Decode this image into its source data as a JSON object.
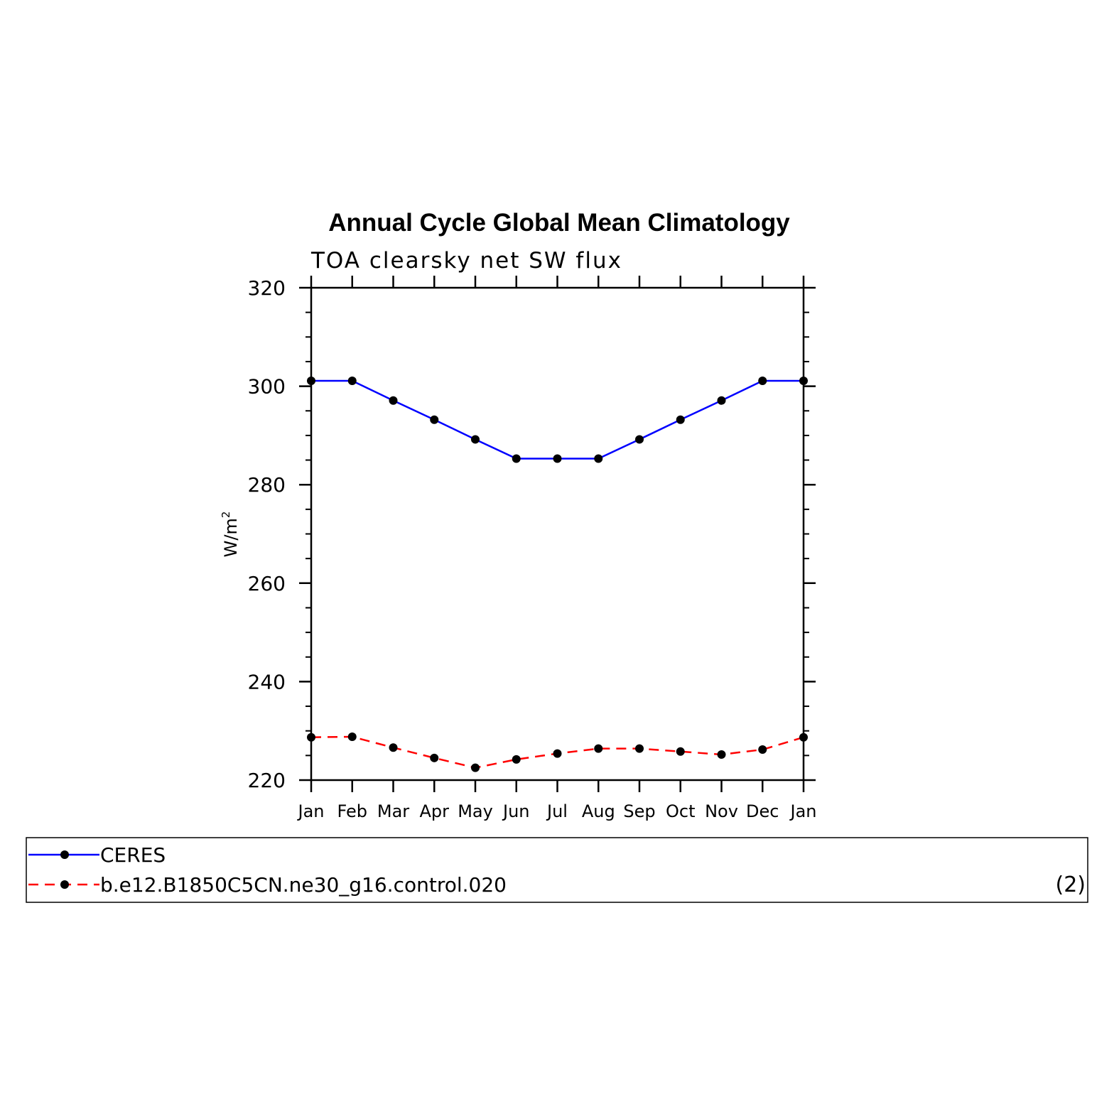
{
  "chart_data": {
    "type": "line",
    "title": "Annual Cycle Global Mean Climatology",
    "subtitle": "TOA clearsky net SW flux",
    "ylabel": "W/m",
    "ylabel_superscript": "2",
    "ylim": [
      220,
      320
    ],
    "yticks": [
      220,
      240,
      260,
      280,
      300,
      320
    ],
    "categories": [
      "Jan",
      "Feb",
      "Mar",
      "Apr",
      "May",
      "Jun",
      "Jul",
      "Aug",
      "Sep",
      "Oct",
      "Nov",
      "Dec",
      "Jan"
    ],
    "series": [
      {
        "name": "CERES",
        "color": "#0000ff",
        "dash": "solid",
        "values": [
          301.1,
          301.1,
          297.1,
          293.2,
          289.2,
          285.3,
          285.3,
          285.3,
          289.2,
          293.2,
          297.1,
          301.1,
          301.1
        ]
      },
      {
        "name": "b.e12.B1850C5CN.ne30_g16.control.020",
        "color": "#ff0000",
        "dash": "dashed",
        "values": [
          228.7,
          228.8,
          226.6,
          224.5,
          222.5,
          224.2,
          225.4,
          226.4,
          226.4,
          225.8,
          225.2,
          226.2,
          228.7
        ]
      }
    ],
    "marker": "filled-circle",
    "marker_color": "#000000",
    "grid": false,
    "legend_position": "bottom"
  },
  "legend": {
    "panel_label": "(2)"
  }
}
